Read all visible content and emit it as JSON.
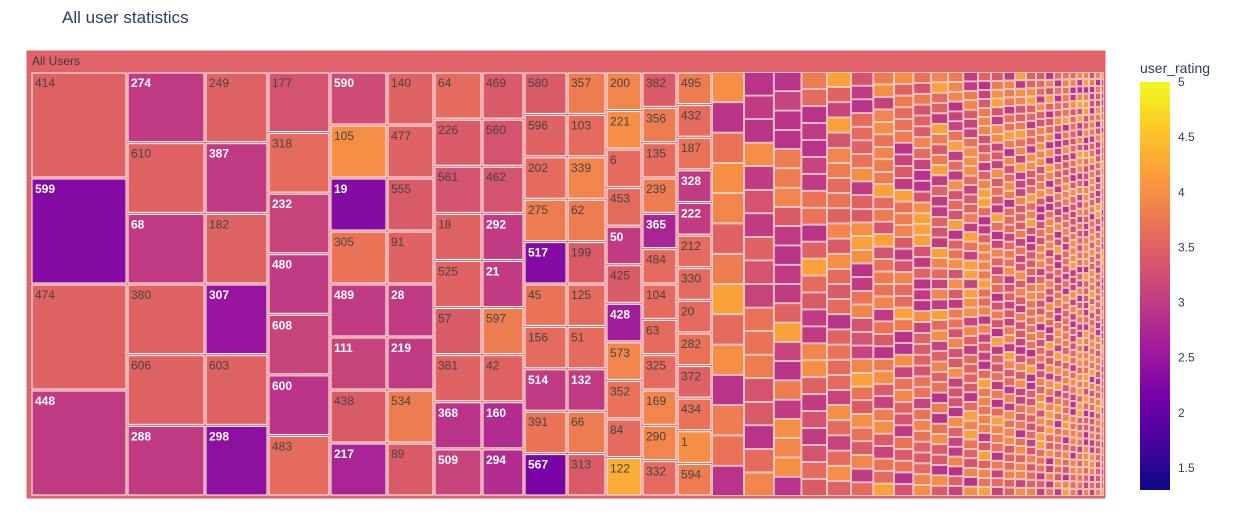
{
  "title": "All user statistics",
  "colorbar": {
    "title": "user_rating",
    "ticks": [
      1.5,
      2,
      2.5,
      3,
      3.5,
      4,
      4.5,
      5
    ],
    "range": [
      1.3,
      5.0
    ],
    "colorscale": [
      "#0d0887",
      "#46039f",
      "#7201a8",
      "#9c179e",
      "#bd3786",
      "#d8576b",
      "#ed7953",
      "#fb9f3a",
      "#fdca26",
      "#f0f921"
    ]
  },
  "chart_data": {
    "type": "treemap",
    "root_label": "All Users",
    "color_variable": "user_rating",
    "columns": [
      [
        [
          "414",
          3.5
        ],
        [
          "599",
          2.3
        ],
        [
          "474",
          3.5
        ],
        [
          "448",
          3.0
        ]
      ],
      [
        [
          "274",
          3.0
        ],
        [
          "610",
          3.5
        ],
        [
          "68",
          3.0
        ],
        [
          "380",
          3.5
        ],
        [
          "606",
          3.5
        ],
        [
          "288",
          3.0
        ]
      ],
      [
        [
          "249",
          3.5
        ],
        [
          "387",
          3.0
        ],
        [
          "182",
          3.5
        ],
        [
          "307",
          2.5
        ],
        [
          "603",
          3.5
        ],
        [
          "298",
          2.4
        ]
      ],
      [
        [
          "177",
          3.3
        ],
        [
          "318",
          3.6
        ],
        [
          "232",
          3.1
        ],
        [
          "480",
          3.0
        ],
        [
          "608",
          3.1
        ],
        [
          "600",
          2.9
        ],
        [
          "483",
          3.6
        ]
      ],
      [
        [
          "590",
          3.2
        ],
        [
          "105",
          4.0
        ],
        [
          "19",
          2.3
        ],
        [
          "305",
          3.7
        ],
        [
          "489",
          3.0
        ],
        [
          "111",
          3.1
        ],
        [
          "438",
          3.4
        ],
        [
          "217",
          2.7
        ]
      ],
      [
        [
          "140",
          3.5
        ],
        [
          "477",
          3.5
        ],
        [
          "555",
          3.4
        ],
        [
          "91",
          3.5
        ],
        [
          "28",
          3.0
        ],
        [
          "219",
          3.0
        ],
        [
          "534",
          3.8
        ],
        [
          "89",
          3.4
        ]
      ],
      [
        [
          "64",
          3.6
        ],
        [
          "226",
          3.4
        ],
        [
          "561",
          3.3
        ],
        [
          "18",
          3.5
        ],
        [
          "525",
          3.5
        ],
        [
          "57",
          3.4
        ],
        [
          "381",
          3.5
        ],
        [
          "368",
          2.9
        ],
        [
          "509",
          3.1
        ]
      ],
      [
        [
          "469",
          3.4
        ],
        [
          "560",
          3.3
        ],
        [
          "462",
          3.3
        ],
        [
          "292",
          3.0
        ],
        [
          "21",
          3.0
        ],
        [
          "597",
          3.8
        ],
        [
          "42",
          3.5
        ],
        [
          "160",
          2.8
        ],
        [
          "294",
          2.8
        ]
      ],
      [
        [
          "580",
          3.4
        ],
        [
          "596",
          3.5
        ],
        [
          "202",
          3.6
        ],
        [
          "275",
          3.8
        ],
        [
          "517",
          2.3
        ],
        [
          "45",
          3.7
        ],
        [
          "156",
          3.6
        ],
        [
          "514",
          3.0
        ],
        [
          "391",
          3.7
        ],
        [
          "567",
          2.2
        ]
      ],
      [
        [
          "357",
          3.8
        ],
        [
          "103",
          3.6
        ],
        [
          "339",
          3.9
        ],
        [
          "62",
          3.8
        ],
        [
          "199",
          3.4
        ],
        [
          "125",
          3.6
        ],
        [
          "51",
          3.6
        ],
        [
          "132",
          3.0
        ],
        [
          "66",
          3.8
        ],
        [
          "313",
          3.4
        ]
      ],
      [
        [
          "200",
          3.9
        ],
        [
          "221",
          4.0
        ],
        [
          "6",
          3.6
        ],
        [
          "453",
          3.6
        ],
        [
          "50",
          3.0
        ],
        [
          "425",
          3.4
        ],
        [
          "428",
          2.6
        ],
        [
          "573",
          3.9
        ],
        [
          "352",
          3.7
        ],
        [
          "84",
          3.6
        ],
        [
          "122",
          4.3
        ]
      ],
      [
        [
          "382",
          3.4
        ],
        [
          "356",
          3.8
        ],
        [
          "135",
          3.6
        ],
        [
          "239",
          3.8
        ],
        [
          "365",
          2.7
        ],
        [
          "484",
          3.6
        ],
        [
          "104",
          3.6
        ],
        [
          "63",
          3.6
        ],
        [
          "325",
          3.6
        ],
        [
          "169",
          3.9
        ],
        [
          "290",
          3.9
        ],
        [
          "332",
          3.6
        ]
      ],
      [
        [
          "495",
          3.8
        ],
        [
          "432",
          3.6
        ],
        [
          "187",
          3.7
        ],
        [
          "328",
          3.0
        ],
        [
          "222",
          3.0
        ],
        [
          "212",
          3.6
        ],
        [
          "330",
          3.6
        ],
        [
          "20",
          3.6
        ],
        [
          "282",
          3.7
        ],
        [
          "372",
          3.5
        ],
        [
          "434",
          3.7
        ],
        [
          "1",
          4.0
        ],
        [
          "594",
          3.8
        ]
      ]
    ],
    "small_tiles_note": "About 600 further tiles at the right of the map are too small for their labels to be legible; they are drawn unlabeled."
  }
}
